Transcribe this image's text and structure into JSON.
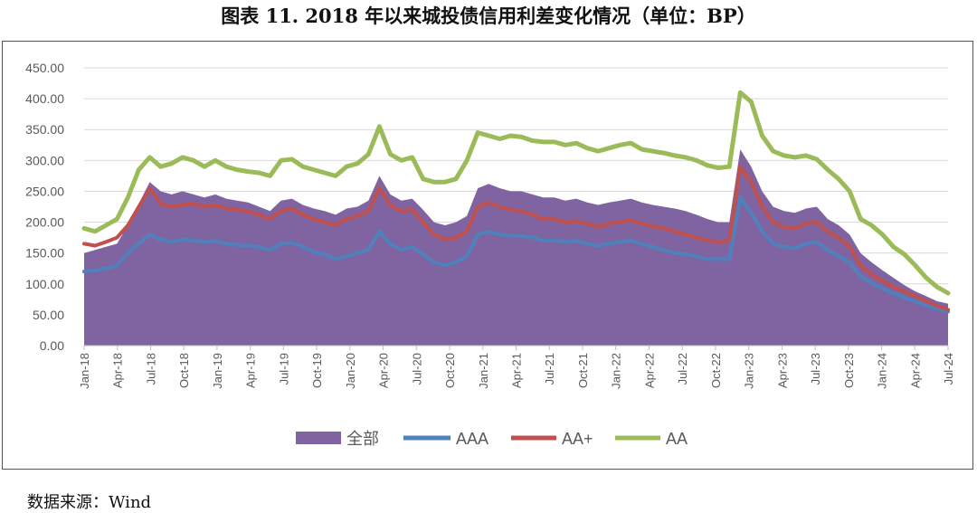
{
  "title": "图表 11. 2018 年以来城投债信用利差变化情况（单位：BP）",
  "source": "数据来源：Wind",
  "chart_data": {
    "type": "area",
    "y_ticks": [
      "0.00",
      "50.00",
      "100.00",
      "150.00",
      "200.00",
      "250.00",
      "300.00",
      "350.00",
      "400.00",
      "450.00"
    ],
    "ylim": [
      0,
      450
    ],
    "x_ticks": [
      "Jan-18",
      "Apr-18",
      "Jul-18",
      "Oct-18",
      "Jan-19",
      "Apr-19",
      "Jul-19",
      "Oct-19",
      "Jan-20",
      "Apr-20",
      "Jul-20",
      "Oct-20",
      "Jan-21",
      "Apr-21",
      "Jul-21",
      "Oct-21",
      "Jan-22",
      "Apr-22",
      "Jul-22",
      "Oct-22",
      "Jan-23",
      "Apr-23",
      "Jul-23",
      "Oct-23",
      "Jan-24",
      "Apr-24",
      "Jul-24"
    ],
    "grid": true,
    "legend_position": "bottom",
    "dates": [
      "2018-01",
      "2018-02",
      "2018-03",
      "2018-04",
      "2018-05",
      "2018-06",
      "2018-07",
      "2018-08",
      "2018-09",
      "2018-10",
      "2018-11",
      "2018-12",
      "2019-01",
      "2019-02",
      "2019-03",
      "2019-04",
      "2019-05",
      "2019-06",
      "2019-07",
      "2019-08",
      "2019-09",
      "2019-10",
      "2019-11",
      "2019-12",
      "2020-01",
      "2020-02",
      "2020-03",
      "2020-04",
      "2020-05",
      "2020-06",
      "2020-07",
      "2020-08",
      "2020-09",
      "2020-10",
      "2020-11",
      "2020-12",
      "2021-01",
      "2021-02",
      "2021-03",
      "2021-04",
      "2021-05",
      "2021-06",
      "2021-07",
      "2021-08",
      "2021-09",
      "2021-10",
      "2021-11",
      "2021-12",
      "2022-01",
      "2022-02",
      "2022-03",
      "2022-04",
      "2022-05",
      "2022-06",
      "2022-07",
      "2022-08",
      "2022-09",
      "2022-10",
      "2022-11",
      "2022-12",
      "2023-01",
      "2023-02",
      "2023-03",
      "2023-04",
      "2023-05",
      "2023-06",
      "2023-07",
      "2023-08",
      "2023-09",
      "2023-10",
      "2023-11",
      "2023-12",
      "2024-01",
      "2024-02",
      "2024-03",
      "2024-04",
      "2024-05",
      "2024-06",
      "2024-07",
      "2024-08"
    ],
    "series": [
      {
        "name": "全部",
        "color": "#8064A2",
        "kind": "area",
        "values": [
          150,
          155,
          160,
          165,
          195,
          230,
          265,
          250,
          245,
          250,
          245,
          240,
          245,
          238,
          235,
          232,
          225,
          218,
          235,
          238,
          228,
          222,
          218,
          212,
          222,
          225,
          235,
          275,
          245,
          235,
          238,
          220,
          200,
          195,
          200,
          210,
          255,
          262,
          255,
          250,
          250,
          245,
          240,
          240,
          235,
          238,
          232,
          228,
          232,
          235,
          238,
          232,
          228,
          225,
          222,
          218,
          212,
          205,
          200,
          200,
          318,
          290,
          250,
          225,
          218,
          215,
          222,
          225,
          205,
          195,
          180,
          150,
          135,
          122,
          110,
          98,
          88,
          80,
          72,
          68
        ]
      },
      {
        "name": "AAA",
        "color": "#4F81BD",
        "kind": "line",
        "values": [
          120,
          122,
          125,
          130,
          150,
          165,
          180,
          172,
          168,
          172,
          170,
          168,
          170,
          165,
          163,
          162,
          160,
          155,
          165,
          167,
          160,
          152,
          148,
          140,
          145,
          150,
          155,
          185,
          165,
          155,
          160,
          148,
          135,
          130,
          135,
          145,
          180,
          185,
          180,
          178,
          178,
          175,
          170,
          170,
          168,
          170,
          165,
          162,
          165,
          168,
          170,
          165,
          160,
          155,
          150,
          148,
          145,
          140,
          140,
          140,
          240,
          215,
          185,
          165,
          160,
          158,
          165,
          168,
          155,
          145,
          135,
          112,
          102,
          92,
          85,
          78,
          72,
          65,
          60,
          55
        ]
      },
      {
        "name": "AA+",
        "color": "#C0504D",
        "kind": "line",
        "values": [
          165,
          162,
          168,
          175,
          195,
          225,
          255,
          230,
          225,
          228,
          230,
          225,
          228,
          222,
          220,
          218,
          212,
          205,
          218,
          222,
          212,
          205,
          200,
          195,
          205,
          210,
          218,
          255,
          228,
          218,
          220,
          200,
          180,
          172,
          175,
          185,
          225,
          232,
          225,
          220,
          218,
          212,
          205,
          205,
          200,
          202,
          198,
          192,
          198,
          200,
          203,
          198,
          193,
          190,
          185,
          180,
          175,
          170,
          168,
          170,
          290,
          265,
          225,
          200,
          192,
          190,
          198,
          200,
          185,
          175,
          160,
          130,
          115,
          105,
          95,
          88,
          80,
          72,
          65,
          58
        ]
      },
      {
        "name": "AA",
        "color": "#9BBB59",
        "kind": "line",
        "values": [
          190,
          185,
          195,
          205,
          240,
          285,
          305,
          290,
          295,
          305,
          300,
          290,
          300,
          290,
          285,
          282,
          280,
          275,
          300,
          302,
          290,
          285,
          280,
          275,
          290,
          295,
          310,
          355,
          310,
          300,
          305,
          270,
          265,
          265,
          270,
          300,
          345,
          340,
          335,
          340,
          338,
          332,
          330,
          330,
          325,
          328,
          320,
          315,
          320,
          325,
          328,
          318,
          315,
          312,
          308,
          305,
          300,
          292,
          288,
          290,
          410,
          395,
          340,
          315,
          308,
          305,
          308,
          302,
          285,
          270,
          250,
          205,
          195,
          180,
          160,
          148,
          130,
          110,
          95,
          85
        ]
      }
    ]
  }
}
